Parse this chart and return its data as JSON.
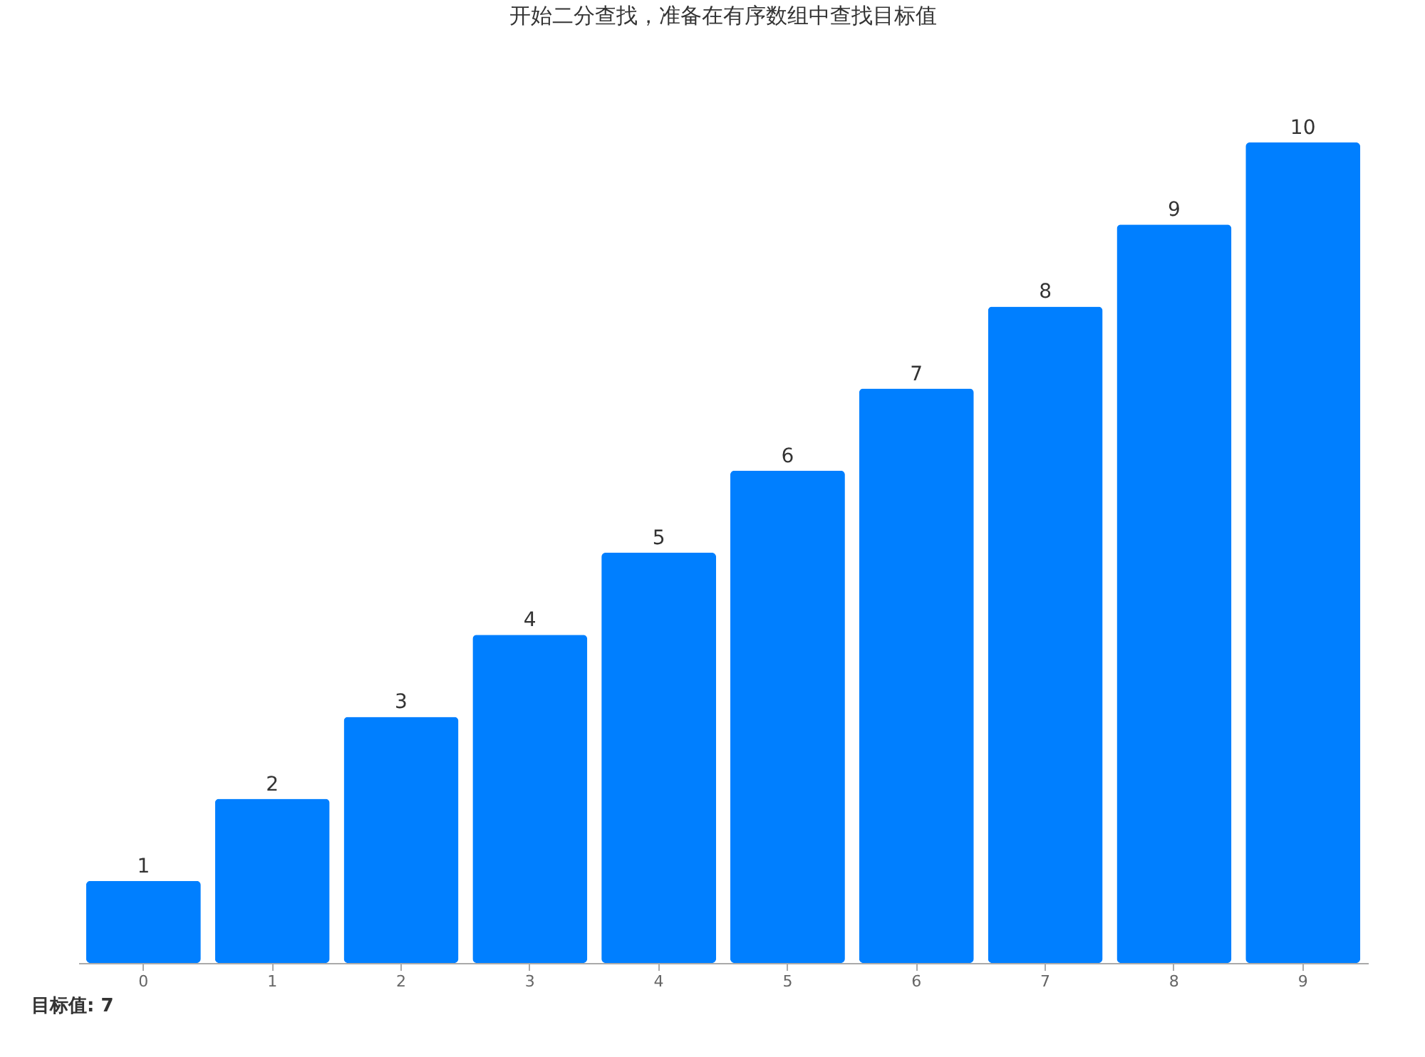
{
  "chart_data": {
    "type": "bar",
    "title": "开始二分查找，准备在有序数组中查找目标值",
    "categories": [
      "0",
      "1",
      "2",
      "3",
      "4",
      "5",
      "6",
      "7",
      "8",
      "9"
    ],
    "values": [
      1,
      2,
      3,
      4,
      5,
      6,
      7,
      8,
      9,
      10
    ],
    "color": "#007fff",
    "data_labels": true,
    "tick_labels": "x",
    "annotations": [
      "目标值: 7"
    ]
  }
}
